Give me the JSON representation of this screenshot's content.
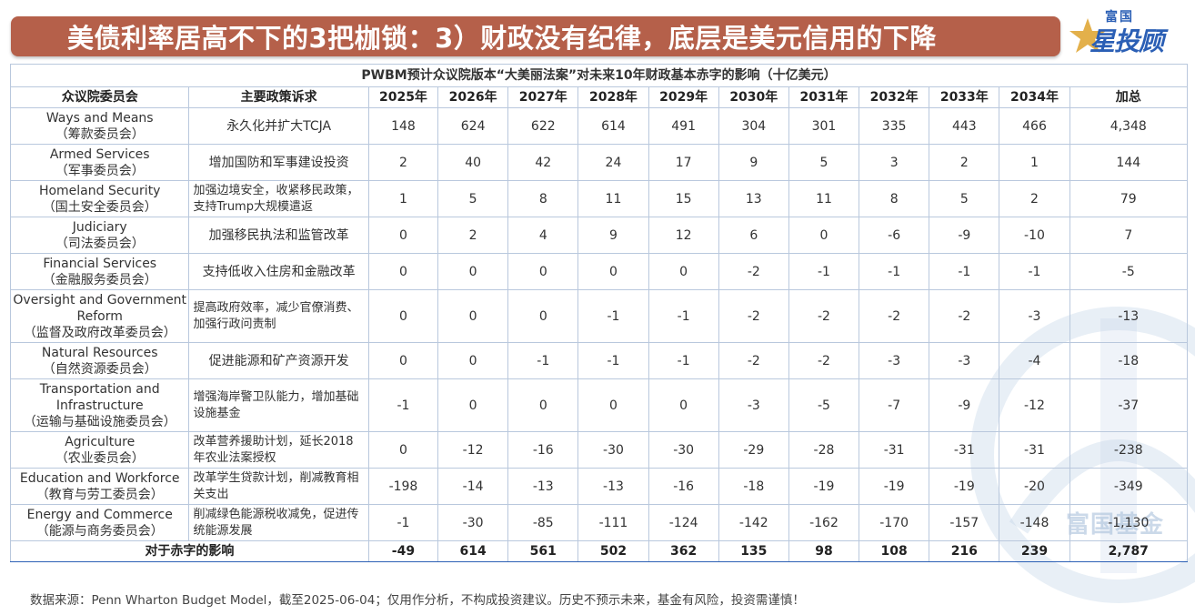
{
  "title": "美债利率居高不下的3把枷锁：3）财政没有纪律，底层是美元信用的下降",
  "logo": {
    "small": "富国",
    "big": "星投顾"
  },
  "watermark_text": "富国基金",
  "table": {
    "caption": "PWBM预计众议院版本“大美丽法案”对未来10年财政基本赤字的影响（十亿美元）",
    "headers": [
      "众议院委员会",
      "主要政策诉求",
      "2025年",
      "2026年",
      "2027年",
      "2028年",
      "2029年",
      "2030年",
      "2031年",
      "2032年",
      "2033年",
      "2034年",
      "加总"
    ],
    "rows": [
      {
        "committee_en": "Ways and Means",
        "committee_zh": "（筹款委员会）",
        "policy": "永久化并扩大TCJA",
        "values": [
          "148",
          "624",
          "622",
          "614",
          "491",
          "304",
          "301",
          "335",
          "443",
          "466",
          "4,348"
        ]
      },
      {
        "committee_en": "Armed Services",
        "committee_zh": "（军事委员会）",
        "policy": "增加国防和军事建设投资",
        "values": [
          "2",
          "40",
          "42",
          "24",
          "17",
          "9",
          "5",
          "3",
          "2",
          "1",
          "144"
        ]
      },
      {
        "committee_en": "Homeland Security",
        "committee_zh": "（国土安全委员会）",
        "policy": "加强边境安全，收紧移民政策，支持Trump大规模遣返",
        "values": [
          "1",
          "5",
          "8",
          "11",
          "15",
          "13",
          "11",
          "8",
          "5",
          "2",
          "79"
        ]
      },
      {
        "committee_en": "Judiciary",
        "committee_zh": "（司法委员会）",
        "policy": "加强移民执法和监管改革",
        "values": [
          "0",
          "2",
          "4",
          "9",
          "12",
          "6",
          "0",
          "-6",
          "-9",
          "-10",
          "7"
        ]
      },
      {
        "committee_en": "Financial Services",
        "committee_zh": "（金融服务委员会）",
        "policy": "支持低收入住房和金融改革",
        "values": [
          "0",
          "0",
          "0",
          "0",
          "0",
          "-2",
          "-1",
          "-1",
          "-1",
          "-1",
          "-5"
        ]
      },
      {
        "committee_en": "Oversight and Government Reform",
        "committee_zh": "（监督及政府改革委员会）",
        "policy": "提高政府效率，减少官僚消费、加强行政问责制",
        "values": [
          "0",
          "0",
          "0",
          "-1",
          "-1",
          "-2",
          "-2",
          "-2",
          "-2",
          "-3",
          "-13"
        ]
      },
      {
        "committee_en": "Natural Resources",
        "committee_zh": "（自然资源委员会）",
        "policy": "促进能源和矿产资源开发",
        "values": [
          "0",
          "0",
          "-1",
          "-1",
          "-1",
          "-2",
          "-2",
          "-3",
          "-3",
          "-4",
          "-18"
        ]
      },
      {
        "committee_en": "Transportation and Infrastructure",
        "committee_zh": "（运输与基础设施委员会）",
        "policy": "增强海岸警卫队能力，增加基础设施基金",
        "values": [
          "-1",
          "0",
          "0",
          "0",
          "0",
          "-3",
          "-5",
          "-7",
          "-9",
          "-12",
          "-37"
        ]
      },
      {
        "committee_en": "Agriculture",
        "committee_zh": "（农业委员会）",
        "policy": "改革营养援助计划，延长2018年农业法案授权",
        "values": [
          "0",
          "-12",
          "-16",
          "-30",
          "-30",
          "-29",
          "-28",
          "-31",
          "-31",
          "-31",
          "-238"
        ]
      },
      {
        "committee_en": "Education and Workforce",
        "committee_zh": "（教育与劳工委员会）",
        "policy": "改革学生贷款计划，削减教育相关支出",
        "values": [
          "-198",
          "-14",
          "-13",
          "-13",
          "-16",
          "-18",
          "-19",
          "-19",
          "-19",
          "-20",
          "-349"
        ]
      },
      {
        "committee_en": "Energy and Commerce",
        "committee_zh": "（能源与商务委员会）",
        "policy": "削减绿色能源税收减免，促进传统能源发展",
        "values": [
          "-1",
          "-30",
          "-85",
          "-111",
          "-124",
          "-142",
          "-162",
          "-170",
          "-157",
          "-148",
          "-1,130"
        ]
      }
    ],
    "total": {
      "label": "对于赤字的影响",
      "values": [
        "-49",
        "614",
        "561",
        "502",
        "362",
        "135",
        "98",
        "108",
        "216",
        "239",
        "2,787"
      ]
    }
  },
  "footnote": "数据来源：Penn Wharton Budget Model，截至2025-06-04；仅用作分析，不构成投资建议。历史不预示未来，基金有风险，投资需谨慎！",
  "colors": {
    "title_bg": "#b5604a",
    "caption": "#1e63c6",
    "border": "#b9c8dd",
    "brand_blue": "#2b5fb5"
  }
}
